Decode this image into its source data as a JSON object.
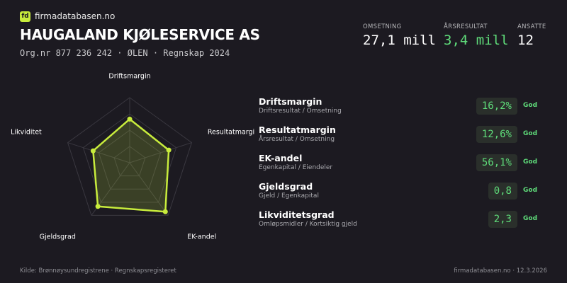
{
  "brand": "firmadatabasen.no",
  "logo": "fd",
  "header": {
    "title": "HAUGALAND KJØLESERVICE AS",
    "subtitle": "Org.nr 877 236 242 · ØLEN · Regnskap 2024"
  },
  "stats": [
    {
      "label": "OMSETNING",
      "value": "27,1 mill"
    },
    {
      "label": "ÅRSRESULTAT",
      "value": "3,4 mill"
    },
    {
      "label": "ANSATTE",
      "value": "12"
    }
  ],
  "radar": {
    "axes": [
      "Driftsmargin",
      "Resultatmargin",
      "EK-andel",
      "Gjeldsgrad",
      "Likviditet"
    ],
    "values": [
      0.67,
      0.63,
      0.93,
      0.83,
      0.59
    ],
    "rlim": [
      0,
      1
    ],
    "rticks": [
      0.25,
      0.5,
      0.75,
      1
    ],
    "color": "#c8ec3c"
  },
  "metrics": [
    {
      "name": "Driftsmargin",
      "formula": "Driftsresultat / Omsetning",
      "value": "16,2%",
      "rating": "God"
    },
    {
      "name": "Resultatmargin",
      "formula": "Årsresultat / Omsetning",
      "value": "12,6%",
      "rating": "God"
    },
    {
      "name": "EK-andel",
      "formula": "Egenkapital / Eiendeler",
      "value": "56,1%",
      "rating": "God"
    },
    {
      "name": "Gjeldsgrad",
      "formula": "Gjeld / Egenkapital",
      "value": "0,8",
      "rating": "God"
    },
    {
      "name": "Likviditetsgrad",
      "formula": "Omløpsmidler / Kortsiktig gjeld",
      "value": "2,3",
      "rating": "God"
    }
  ],
  "footer": {
    "source": "Kilde: Brønnøysundregistrene · Regnskapsregisteret",
    "site": "firmadatabasen.no · 12.3.2026"
  }
}
